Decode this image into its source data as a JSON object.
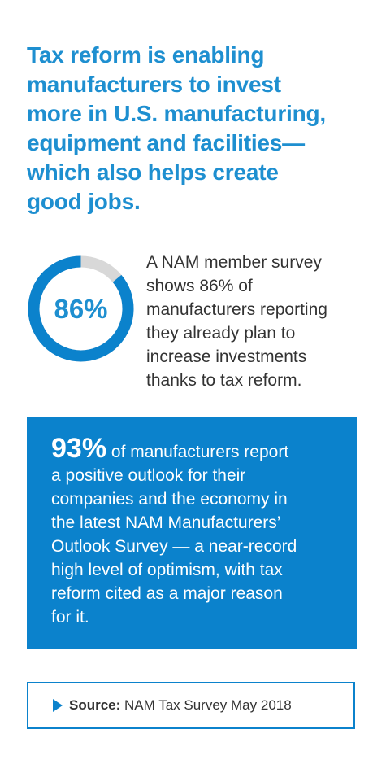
{
  "headline": {
    "lines": [
      "Tax reform is enabling",
      "manufacturers to invest",
      "more in U.S. manufacturing,",
      "equipment and facilities—",
      "which also helps create",
      "good jobs."
    ]
  },
  "survey_stat": {
    "percent_label": "86%",
    "percent_value": 86,
    "ring_color": "#0b82cc",
    "ring_track_color": "#d8d8d8",
    "text_lines": [
      "A NAM member survey",
      "shows 86% of",
      "manufacturers reporting",
      "they already plan to",
      "increase investments",
      "thanks to tax reform."
    ]
  },
  "outlook": {
    "percent_label": "93%",
    "first_line_rest": " of manufacturers report",
    "lines": [
      "a positive outlook for their",
      "companies and the economy in",
      "the latest NAM Manufacturers’",
      "Outlook Survey — a near-record",
      "high level of optimism, with tax",
      "reform cited as a major reason",
      "for it."
    ],
    "box_color": "#0b82cc"
  },
  "source": {
    "label": "Source:",
    "text": " NAM Tax Survey May 2018",
    "arrow_icon": "triangle-right-icon"
  },
  "colors": {
    "headline": "#1e8fd0",
    "body_text": "#333333",
    "accent": "#0b82cc"
  }
}
